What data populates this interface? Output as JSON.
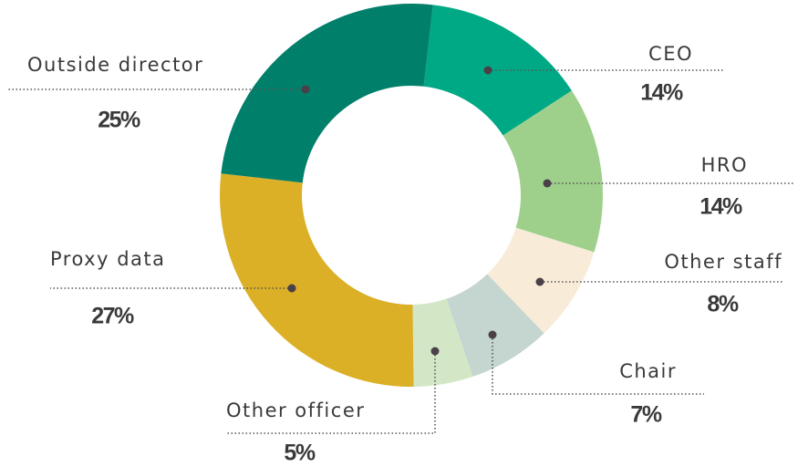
{
  "chart_data": {
    "type": "donut",
    "categories": [
      "CEO",
      "HRO",
      "Other staff",
      "Chair",
      "Other officer",
      "Proxy data",
      "Outside director"
    ],
    "values": [
      14,
      14,
      8,
      7,
      5,
      27,
      25
    ],
    "value_labels": [
      "14%",
      "14%",
      "8%",
      "7%",
      "5%",
      "27%",
      "25%"
    ],
    "colors": [
      "#00a985",
      "#9ed08b",
      "#f8ecd9",
      "#c4d6cf",
      "#d3e7c7",
      "#dbb026",
      "#007f6a"
    ]
  }
}
